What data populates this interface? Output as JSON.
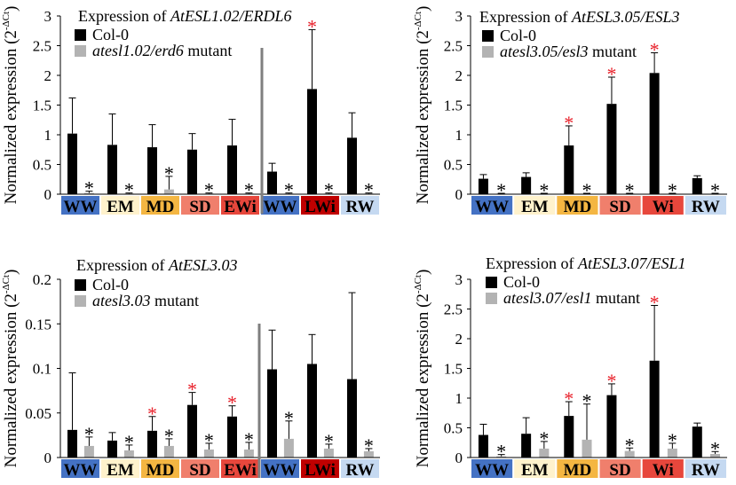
{
  "colors": {
    "col0": "#000000",
    "mutant": "#b3b3b3",
    "error_bar": "#000000",
    "sig_red": "#e8202a",
    "sig_black": "#000000",
    "divider": "#7f7f7f",
    "WW": "#4472c4",
    "EM": "#fff2cc",
    "MD": "#f4b642",
    "SD": "#f07f6c",
    "EWi": "#e7473c",
    "LWi": "#c00000",
    "Wi": "#e7473c",
    "RW": "#c5d9f1",
    "cond_text": "#000000"
  },
  "chart_data": [
    {
      "type": "bar",
      "title_prefix": "Expression of ",
      "title_gene": "AtESL1.02/ERDL6",
      "ylabel": "Normalized expression (2",
      "ylabel_sup": "-ΔCt",
      "ylabel_close": ")",
      "ylim": [
        0,
        3
      ],
      "yticks": [
        0,
        0.5,
        1,
        1.5,
        2,
        2.5,
        3
      ],
      "ytick_labels": [
        "0",
        "0.5",
        "1",
        "1.5",
        "2",
        "2.5",
        "3"
      ],
      "legend": [
        {
          "label": "Col-0",
          "italic": false,
          "color_key": "col0"
        },
        {
          "label": "atesl1.02/erd6",
          "suffix": " mutant",
          "italic": true,
          "color_key": "mutant"
        }
      ],
      "categories": [
        "WW",
        "EM",
        "MD",
        "SD",
        "EWi",
        "WW",
        "LWi",
        "RW"
      ],
      "divider_after": 4,
      "series": [
        {
          "name": "Col-0",
          "values": [
            1.02,
            0.83,
            0.79,
            0.75,
            0.82,
            0.38,
            1.77,
            0.95
          ],
          "errors": [
            0.6,
            0.52,
            0.38,
            0.27,
            0.44,
            0.14,
            1.0,
            0.42
          ]
        },
        {
          "name": "atesl1.02/erd6 mutant",
          "values": [
            0.02,
            0.01,
            0.08,
            0.01,
            0.01,
            0.01,
            0.01,
            0.01
          ],
          "errors": [
            0.03,
            0.01,
            0.22,
            0.01,
            0.01,
            0.01,
            0.01,
            0.01
          ]
        }
      ],
      "significance": [
        {
          "series": 1,
          "index": 0,
          "symbol": "*",
          "color_key": "sig_black"
        },
        {
          "series": 1,
          "index": 1,
          "symbol": "*",
          "color_key": "sig_black"
        },
        {
          "series": 1,
          "index": 2,
          "symbol": "*",
          "color_key": "sig_black"
        },
        {
          "series": 1,
          "index": 3,
          "symbol": "*",
          "color_key": "sig_black"
        },
        {
          "series": 1,
          "index": 4,
          "symbol": "*",
          "color_key": "sig_black"
        },
        {
          "series": 1,
          "index": 5,
          "symbol": "*",
          "color_key": "sig_black"
        },
        {
          "series": 0,
          "index": 6,
          "symbol": "*",
          "color_key": "sig_red"
        },
        {
          "series": 1,
          "index": 6,
          "symbol": "*",
          "color_key": "sig_black"
        },
        {
          "series": 1,
          "index": 7,
          "symbol": "*",
          "color_key": "sig_black"
        }
      ]
    },
    {
      "type": "bar",
      "title_prefix": "Expression of ",
      "title_gene": "AtESL3.05/ESL3",
      "ylabel": "Normalized expression (2",
      "ylabel_sup": "-ΔCt",
      "ylabel_close": ")",
      "ylim": [
        0,
        3
      ],
      "yticks": [
        0,
        0.5,
        1,
        1.5,
        2,
        2.5,
        3
      ],
      "ytick_labels": [
        "0",
        "0.5",
        "1",
        "1.5",
        "2",
        "2.5",
        "3"
      ],
      "legend": [
        {
          "label": "Col-0",
          "italic": false,
          "color_key": "col0"
        },
        {
          "label": "atesl3.05/esl3",
          "suffix": " mutant",
          "italic": true,
          "color_key": "mutant"
        }
      ],
      "categories": [
        "WW",
        "EM",
        "MD",
        "SD",
        "Wi",
        "RW"
      ],
      "divider_after": null,
      "series": [
        {
          "name": "Col-0",
          "values": [
            0.26,
            0.29,
            0.82,
            1.52,
            2.04,
            0.27
          ],
          "errors": [
            0.07,
            0.07,
            0.33,
            0.45,
            0.34,
            0.04
          ]
        },
        {
          "name": "atesl3.05/esl3 mutant",
          "values": [
            0.01,
            0.01,
            0.01,
            0.01,
            0.01,
            0.01
          ],
          "errors": [
            0.005,
            0.005,
            0.005,
            0.005,
            0.005,
            0.005
          ]
        }
      ],
      "significance": [
        {
          "series": 1,
          "index": 0,
          "symbol": "*",
          "color_key": "sig_black"
        },
        {
          "series": 1,
          "index": 1,
          "symbol": "*",
          "color_key": "sig_black"
        },
        {
          "series": 0,
          "index": 2,
          "symbol": "*",
          "color_key": "sig_red"
        },
        {
          "series": 1,
          "index": 2,
          "symbol": "*",
          "color_key": "sig_black"
        },
        {
          "series": 0,
          "index": 3,
          "symbol": "*",
          "color_key": "sig_red"
        },
        {
          "series": 1,
          "index": 3,
          "symbol": "*",
          "color_key": "sig_black"
        },
        {
          "series": 0,
          "index": 4,
          "symbol": "*",
          "color_key": "sig_red"
        },
        {
          "series": 1,
          "index": 4,
          "symbol": "*",
          "color_key": "sig_black"
        },
        {
          "series": 1,
          "index": 5,
          "symbol": "*",
          "color_key": "sig_black"
        }
      ]
    },
    {
      "type": "bar",
      "title_prefix": "Expression of ",
      "title_gene": "AtESL3.03",
      "ylabel": "Normalized expression (2",
      "ylabel_sup": "-ΔCt",
      "ylabel_close": ")",
      "ylim": [
        0,
        0.2
      ],
      "yticks": [
        0,
        0.05,
        0.1,
        0.15,
        0.2
      ],
      "ytick_labels": [
        "0",
        "0.05",
        "0.1",
        "0.15",
        "0.2"
      ],
      "legend": [
        {
          "label": "Col-0",
          "italic": false,
          "color_key": "col0"
        },
        {
          "label": "atesl3.03",
          "suffix": " mutant",
          "italic": true,
          "color_key": "mutant"
        }
      ],
      "categories": [
        "WW",
        "EM",
        "MD",
        "SD",
        "EWi",
        "WW",
        "LWi",
        "RW"
      ],
      "divider_after": 4,
      "series": [
        {
          "name": "Col-0",
          "values": [
            0.031,
            0.019,
            0.03,
            0.059,
            0.046,
            0.099,
            0.105,
            0.088
          ],
          "errors": [
            0.064,
            0.009,
            0.016,
            0.014,
            0.012,
            0.044,
            0.033,
            0.097
          ]
        },
        {
          "name": "atesl3.03 mutant",
          "values": [
            0.013,
            0.008,
            0.013,
            0.009,
            0.009,
            0.021,
            0.01,
            0.007
          ],
          "errors": [
            0.01,
            0.006,
            0.008,
            0.007,
            0.008,
            0.02,
            0.005,
            0.003
          ]
        }
      ],
      "significance": [
        {
          "series": 1,
          "index": 0,
          "symbol": "*",
          "color_key": "sig_black"
        },
        {
          "series": 1,
          "index": 1,
          "symbol": "*",
          "color_key": "sig_black"
        },
        {
          "series": 0,
          "index": 2,
          "symbol": "*",
          "color_key": "sig_red"
        },
        {
          "series": 1,
          "index": 2,
          "symbol": "*",
          "color_key": "sig_black"
        },
        {
          "series": 0,
          "index": 3,
          "symbol": "*",
          "color_key": "sig_red"
        },
        {
          "series": 1,
          "index": 3,
          "symbol": "*",
          "color_key": "sig_black"
        },
        {
          "series": 0,
          "index": 4,
          "symbol": "*",
          "color_key": "sig_red"
        },
        {
          "series": 1,
          "index": 4,
          "symbol": "*",
          "color_key": "sig_black"
        },
        {
          "series": 1,
          "index": 5,
          "symbol": "*",
          "color_key": "sig_black"
        },
        {
          "series": 1,
          "index": 6,
          "symbol": "*",
          "color_key": "sig_black"
        },
        {
          "series": 1,
          "index": 7,
          "symbol": "*",
          "color_key": "sig_black"
        }
      ]
    },
    {
      "type": "bar",
      "title_prefix": "Expression of ",
      "title_gene": "AtESL3.07/ESL1",
      "ylabel": "Normalized expression (2",
      "ylabel_sup": "-ΔCt",
      "ylabel_close": ")",
      "ylim": [
        0,
        3
      ],
      "yticks": [
        0,
        0.5,
        1,
        1.5,
        2,
        2.5,
        3
      ],
      "ytick_labels": [
        "0",
        "0.5",
        "1",
        "1.5",
        "2",
        "2.5",
        "3"
      ],
      "legend": [
        {
          "label": "Col-0",
          "italic": false,
          "color_key": "col0"
        },
        {
          "label": "atesl3.07/esl1",
          "suffix": " mutant",
          "italic": true,
          "color_key": "mutant"
        }
      ],
      "categories": [
        "WW",
        "EM",
        "MD",
        "SD",
        "Wi",
        "RW"
      ],
      "divider_after": null,
      "series": [
        {
          "name": "Col-0",
          "values": [
            0.38,
            0.4,
            0.7,
            1.05,
            1.63,
            0.52
          ],
          "errors": [
            0.18,
            0.27,
            0.24,
            0.19,
            0.93,
            0.06
          ]
        },
        {
          "name": "atesl3.07/esl1 mutant",
          "values": [
            0.02,
            0.15,
            0.3,
            0.11,
            0.15,
            0.06
          ],
          "errors": [
            0.03,
            0.12,
            0.6,
            0.05,
            0.09,
            0.04
          ]
        }
      ],
      "significance": [
        {
          "series": 1,
          "index": 0,
          "symbol": "*",
          "color_key": "sig_black"
        },
        {
          "series": 1,
          "index": 1,
          "symbol": "*",
          "color_key": "sig_black"
        },
        {
          "series": 0,
          "index": 2,
          "symbol": "*",
          "color_key": "sig_red"
        },
        {
          "series": 1,
          "index": 2,
          "symbol": "*",
          "color_key": "sig_black"
        },
        {
          "series": 0,
          "index": 3,
          "symbol": "*",
          "color_key": "sig_red"
        },
        {
          "series": 1,
          "index": 3,
          "symbol": "*",
          "color_key": "sig_black"
        },
        {
          "series": 0,
          "index": 4,
          "symbol": "*",
          "color_key": "sig_red"
        },
        {
          "series": 1,
          "index": 4,
          "symbol": "*",
          "color_key": "sig_black"
        },
        {
          "series": 1,
          "index": 5,
          "symbol": "*",
          "color_key": "sig_black"
        }
      ]
    }
  ]
}
